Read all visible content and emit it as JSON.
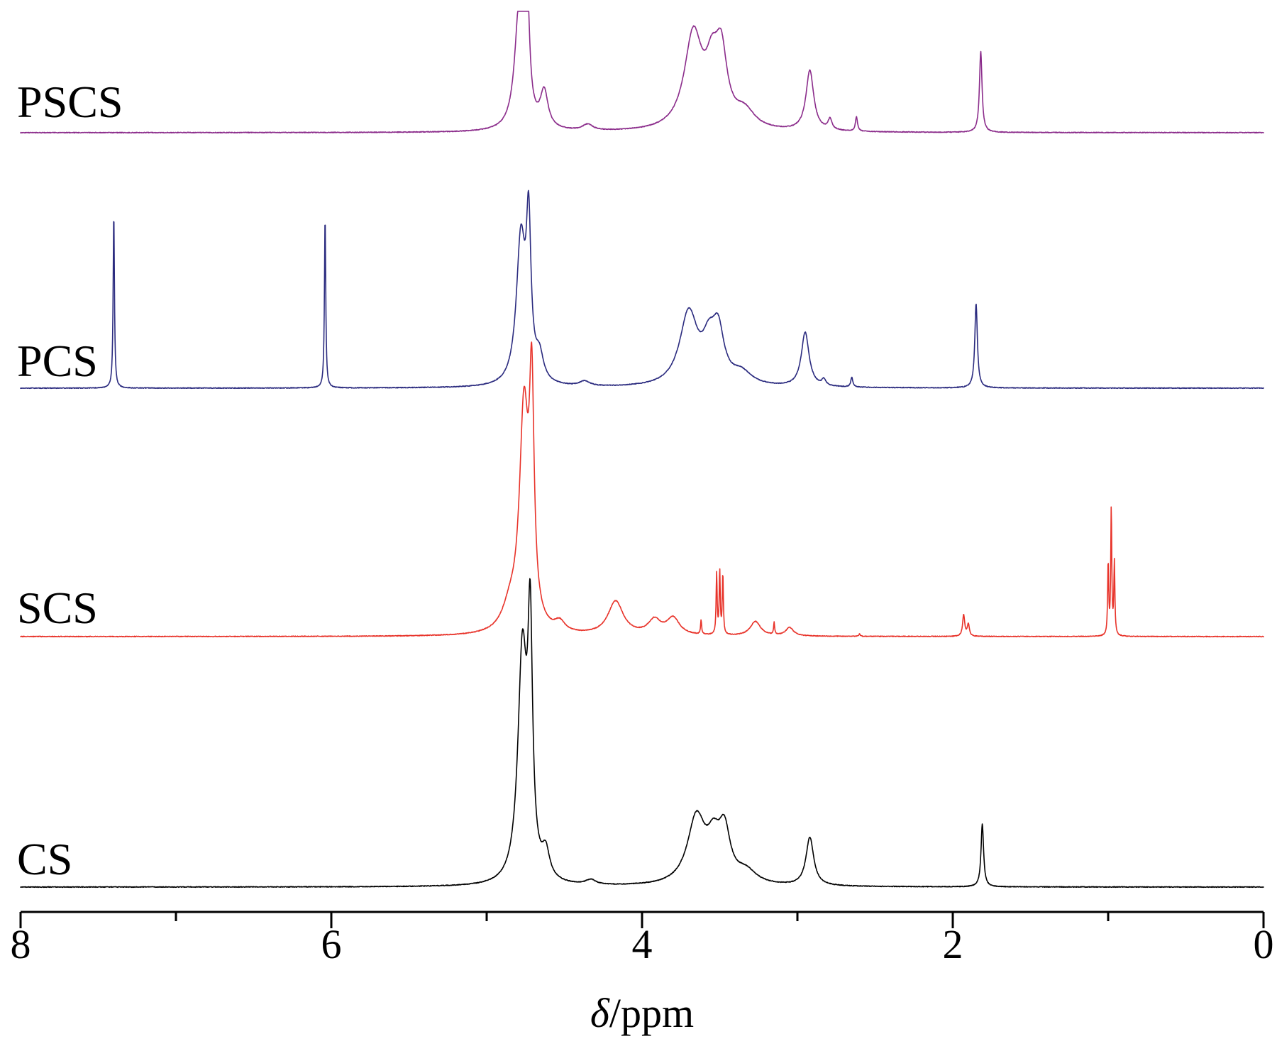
{
  "chart_data": {
    "type": "line",
    "title": "",
    "xlabel_symbol": "δ",
    "xlabel_unit": "/ppm",
    "xlim": [
      8,
      0
    ],
    "xticks": [
      8,
      6,
      4,
      2,
      0
    ],
    "x_reversed": true,
    "grid": false,
    "legend": "none",
    "series": [
      {
        "name": "PSCS",
        "color": "#8B2C8B",
        "peaks": [
          {
            "x": 4.79,
            "height": 1.0,
            "width": 0.035
          },
          {
            "x": 4.74,
            "height": 1.0,
            "width": 0.018
          },
          {
            "x": 4.63,
            "height": 0.3,
            "width": 0.03
          },
          {
            "x": 4.35,
            "height": 0.05,
            "width": 0.04
          },
          {
            "x": 3.67,
            "height": 0.78,
            "width": 0.07
          },
          {
            "x": 3.55,
            "height": 0.4,
            "width": 0.05
          },
          {
            "x": 3.49,
            "height": 0.55,
            "width": 0.045
          },
          {
            "x": 3.34,
            "height": 0.14,
            "width": 0.08
          },
          {
            "x": 2.92,
            "height": 0.5,
            "width": 0.03
          },
          {
            "x": 2.79,
            "height": 0.09,
            "width": 0.015
          },
          {
            "x": 2.62,
            "height": 0.12,
            "width": 0.008
          },
          {
            "x": 1.82,
            "height": 0.67,
            "width": 0.01
          }
        ]
      },
      {
        "name": "PCS",
        "color": "#2B2B7F",
        "peaks": [
          {
            "x": 7.4,
            "height": 1.45,
            "width": 0.005
          },
          {
            "x": 6.04,
            "height": 1.42,
            "width": 0.005
          },
          {
            "x": 4.78,
            "height": 1.2,
            "width": 0.035
          },
          {
            "x": 4.73,
            "height": 1.2,
            "width": 0.018
          },
          {
            "x": 4.66,
            "height": 0.2,
            "width": 0.03
          },
          {
            "x": 4.37,
            "height": 0.04,
            "width": 0.04
          },
          {
            "x": 3.7,
            "height": 0.6,
            "width": 0.07
          },
          {
            "x": 3.57,
            "height": 0.28,
            "width": 0.05
          },
          {
            "x": 3.51,
            "height": 0.4,
            "width": 0.045
          },
          {
            "x": 3.36,
            "height": 0.1,
            "width": 0.08
          },
          {
            "x": 2.95,
            "height": 0.45,
            "width": 0.03
          },
          {
            "x": 2.83,
            "height": 0.05,
            "width": 0.015
          },
          {
            "x": 2.65,
            "height": 0.08,
            "width": 0.008
          },
          {
            "x": 1.85,
            "height": 0.7,
            "width": 0.01
          }
        ]
      },
      {
        "name": "SCS",
        "color": "#E8332A",
        "peaks": [
          {
            "x": 4.76,
            "height": 1.8,
            "width": 0.035
          },
          {
            "x": 4.71,
            "height": 1.8,
            "width": 0.018
          },
          {
            "x": 4.85,
            "height": 0.18,
            "width": 0.06
          },
          {
            "x": 4.53,
            "height": 0.08,
            "width": 0.04
          },
          {
            "x": 4.17,
            "height": 0.28,
            "width": 0.06
          },
          {
            "x": 3.92,
            "height": 0.12,
            "width": 0.05
          },
          {
            "x": 3.8,
            "height": 0.14,
            "width": 0.05
          },
          {
            "x": 3.62,
            "height": 0.12,
            "width": 0.004
          },
          {
            "x": 3.52,
            "height": 0.5,
            "width": 0.004
          },
          {
            "x": 3.5,
            "height": 0.52,
            "width": 0.004
          },
          {
            "x": 3.48,
            "height": 0.5,
            "width": 0.004
          },
          {
            "x": 3.27,
            "height": 0.12,
            "width": 0.04
          },
          {
            "x": 3.15,
            "height": 0.1,
            "width": 0.004
          },
          {
            "x": 3.05,
            "height": 0.07,
            "width": 0.03
          },
          {
            "x": 2.6,
            "height": 0.02,
            "width": 0.005
          },
          {
            "x": 1.93,
            "height": 0.18,
            "width": 0.008
          },
          {
            "x": 1.9,
            "height": 0.1,
            "width": 0.008
          },
          {
            "x": 1.0,
            "height": 0.6,
            "width": 0.004
          },
          {
            "x": 0.98,
            "height": 1.05,
            "width": 0.004
          },
          {
            "x": 0.96,
            "height": 0.6,
            "width": 0.004
          }
        ]
      },
      {
        "name": "CS",
        "color": "#000000",
        "peaks": [
          {
            "x": 4.77,
            "height": 1.9,
            "width": 0.035
          },
          {
            "x": 4.72,
            "height": 1.9,
            "width": 0.018
          },
          {
            "x": 4.62,
            "height": 0.22,
            "width": 0.03
          },
          {
            "x": 4.33,
            "height": 0.04,
            "width": 0.04
          },
          {
            "x": 3.65,
            "height": 0.55,
            "width": 0.07
          },
          {
            "x": 3.54,
            "height": 0.28,
            "width": 0.05
          },
          {
            "x": 3.47,
            "height": 0.4,
            "width": 0.045
          },
          {
            "x": 3.33,
            "height": 0.1,
            "width": 0.08
          },
          {
            "x": 2.92,
            "height": 0.4,
            "width": 0.03
          },
          {
            "x": 1.81,
            "height": 0.52,
            "width": 0.01
          }
        ]
      }
    ]
  },
  "labels": {
    "pscs": "PSCS",
    "pcs": "PCS",
    "scs": "SCS",
    "cs": "CS"
  },
  "axis": {
    "tick_8": "8",
    "tick_6": "6",
    "tick_4": "4",
    "tick_2": "2",
    "tick_0": "0",
    "xlabel_symbol": "δ",
    "xlabel_unit": "/ppm"
  }
}
